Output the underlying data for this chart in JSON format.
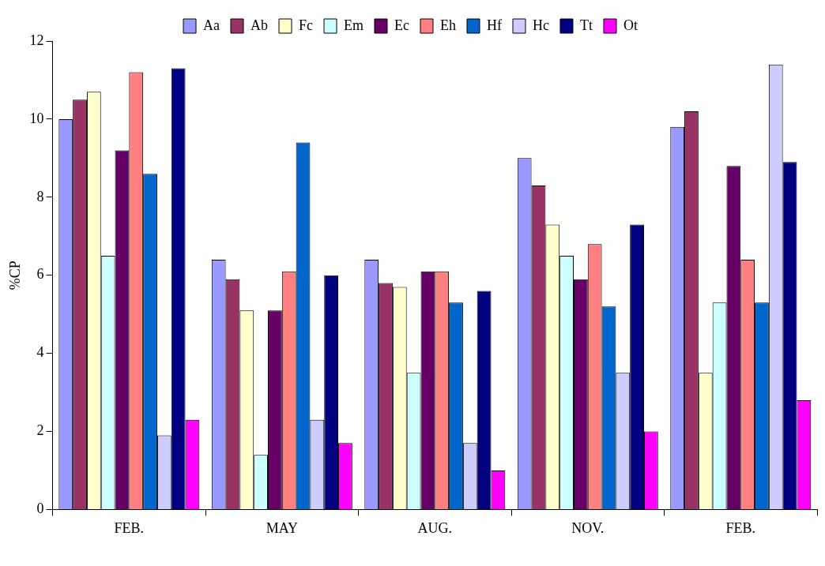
{
  "chart_data": {
    "type": "bar",
    "ylabel": "%CP",
    "categories": [
      "FEB.",
      "MAY",
      "AUG.",
      "NOV.",
      "FEB."
    ],
    "ylim": [
      0,
      12
    ],
    "yticks": [
      0,
      2,
      4,
      6,
      8,
      10,
      12
    ],
    "legend": "top",
    "series": [
      {
        "name": "Aa",
        "color": "#9999ff",
        "values": [
          10.0,
          6.4,
          6.4,
          9.0,
          9.8
        ]
      },
      {
        "name": "Ab",
        "color": "#993366",
        "values": [
          10.5,
          5.9,
          5.8,
          8.3,
          10.2
        ]
      },
      {
        "name": "Fc",
        "color": "#ffffcc",
        "values": [
          10.7,
          5.1,
          5.7,
          7.3,
          3.5
        ]
      },
      {
        "name": "Em",
        "color": "#ccffff",
        "values": [
          6.5,
          1.4,
          3.5,
          6.5,
          5.3
        ]
      },
      {
        "name": "Ec",
        "color": "#660066",
        "values": [
          9.2,
          5.1,
          6.1,
          5.9,
          8.8
        ]
      },
      {
        "name": "Eh",
        "color": "#ff8080",
        "values": [
          11.2,
          6.1,
          6.1,
          6.8,
          6.4
        ]
      },
      {
        "name": "Hf",
        "color": "#0066cc",
        "values": [
          8.6,
          9.4,
          5.3,
          5.2,
          5.3
        ]
      },
      {
        "name": "Hc",
        "color": "#ccccff",
        "values": [
          1.9,
          2.3,
          1.7,
          3.5,
          11.4
        ]
      },
      {
        "name": "Tt",
        "color": "#000080",
        "values": [
          11.3,
          6.0,
          5.6,
          7.3,
          8.9
        ]
      },
      {
        "name": "Ot",
        "color": "#ff00ff",
        "values": [
          2.3,
          1.7,
          1.0,
          2.0,
          2.8
        ]
      }
    ]
  }
}
